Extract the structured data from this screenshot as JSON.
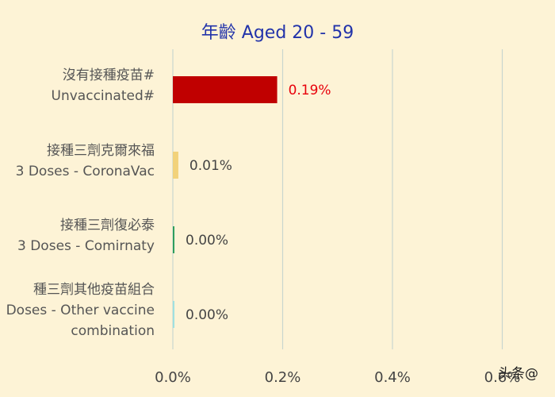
{
  "chart_data": {
    "type": "bar",
    "orientation": "horizontal",
    "title": "年齡 Aged 20 - 59",
    "categories": [
      {
        "zh": "沒有接種疫苗#",
        "en": [
          "Unvaccinated#"
        ]
      },
      {
        "zh": "接種三劑克爾來福",
        "en": [
          "3 Doses - CoronaVac"
        ]
      },
      {
        "zh": "接種三劑復必泰",
        "en": [
          "3 Doses - Comirnaty"
        ]
      },
      {
        "zh": "種三劑其他疫苗組合",
        "en": [
          "Doses - Other vaccine",
          "combination"
        ]
      }
    ],
    "values": [
      0.19,
      0.01,
      0.0,
      0.0
    ],
    "value_labels": [
      "0.19%",
      "0.01%",
      "0.00%",
      "0.00%"
    ],
    "bar_colors": [
      "#c00000",
      "#f2d27a",
      "#2e9e5e",
      "#9fe0e0"
    ],
    "value_label_colors": [
      "#e8000b",
      "#444444",
      "#444444",
      "#444444"
    ],
    "xlim": [
      0,
      0.8
    ],
    "xticks": [
      0.0,
      0.2,
      0.4,
      0.6,
      0.8
    ],
    "xtick_labels": [
      "0.0%",
      "0.2%",
      "0.4%",
      "0.6%",
      ""
    ],
    "xlabel": "",
    "ylabel": "",
    "grid": "vertical",
    "grid_color": "#c9d6cf",
    "title_color": "#2233aa"
  },
  "watermark": "头条@"
}
